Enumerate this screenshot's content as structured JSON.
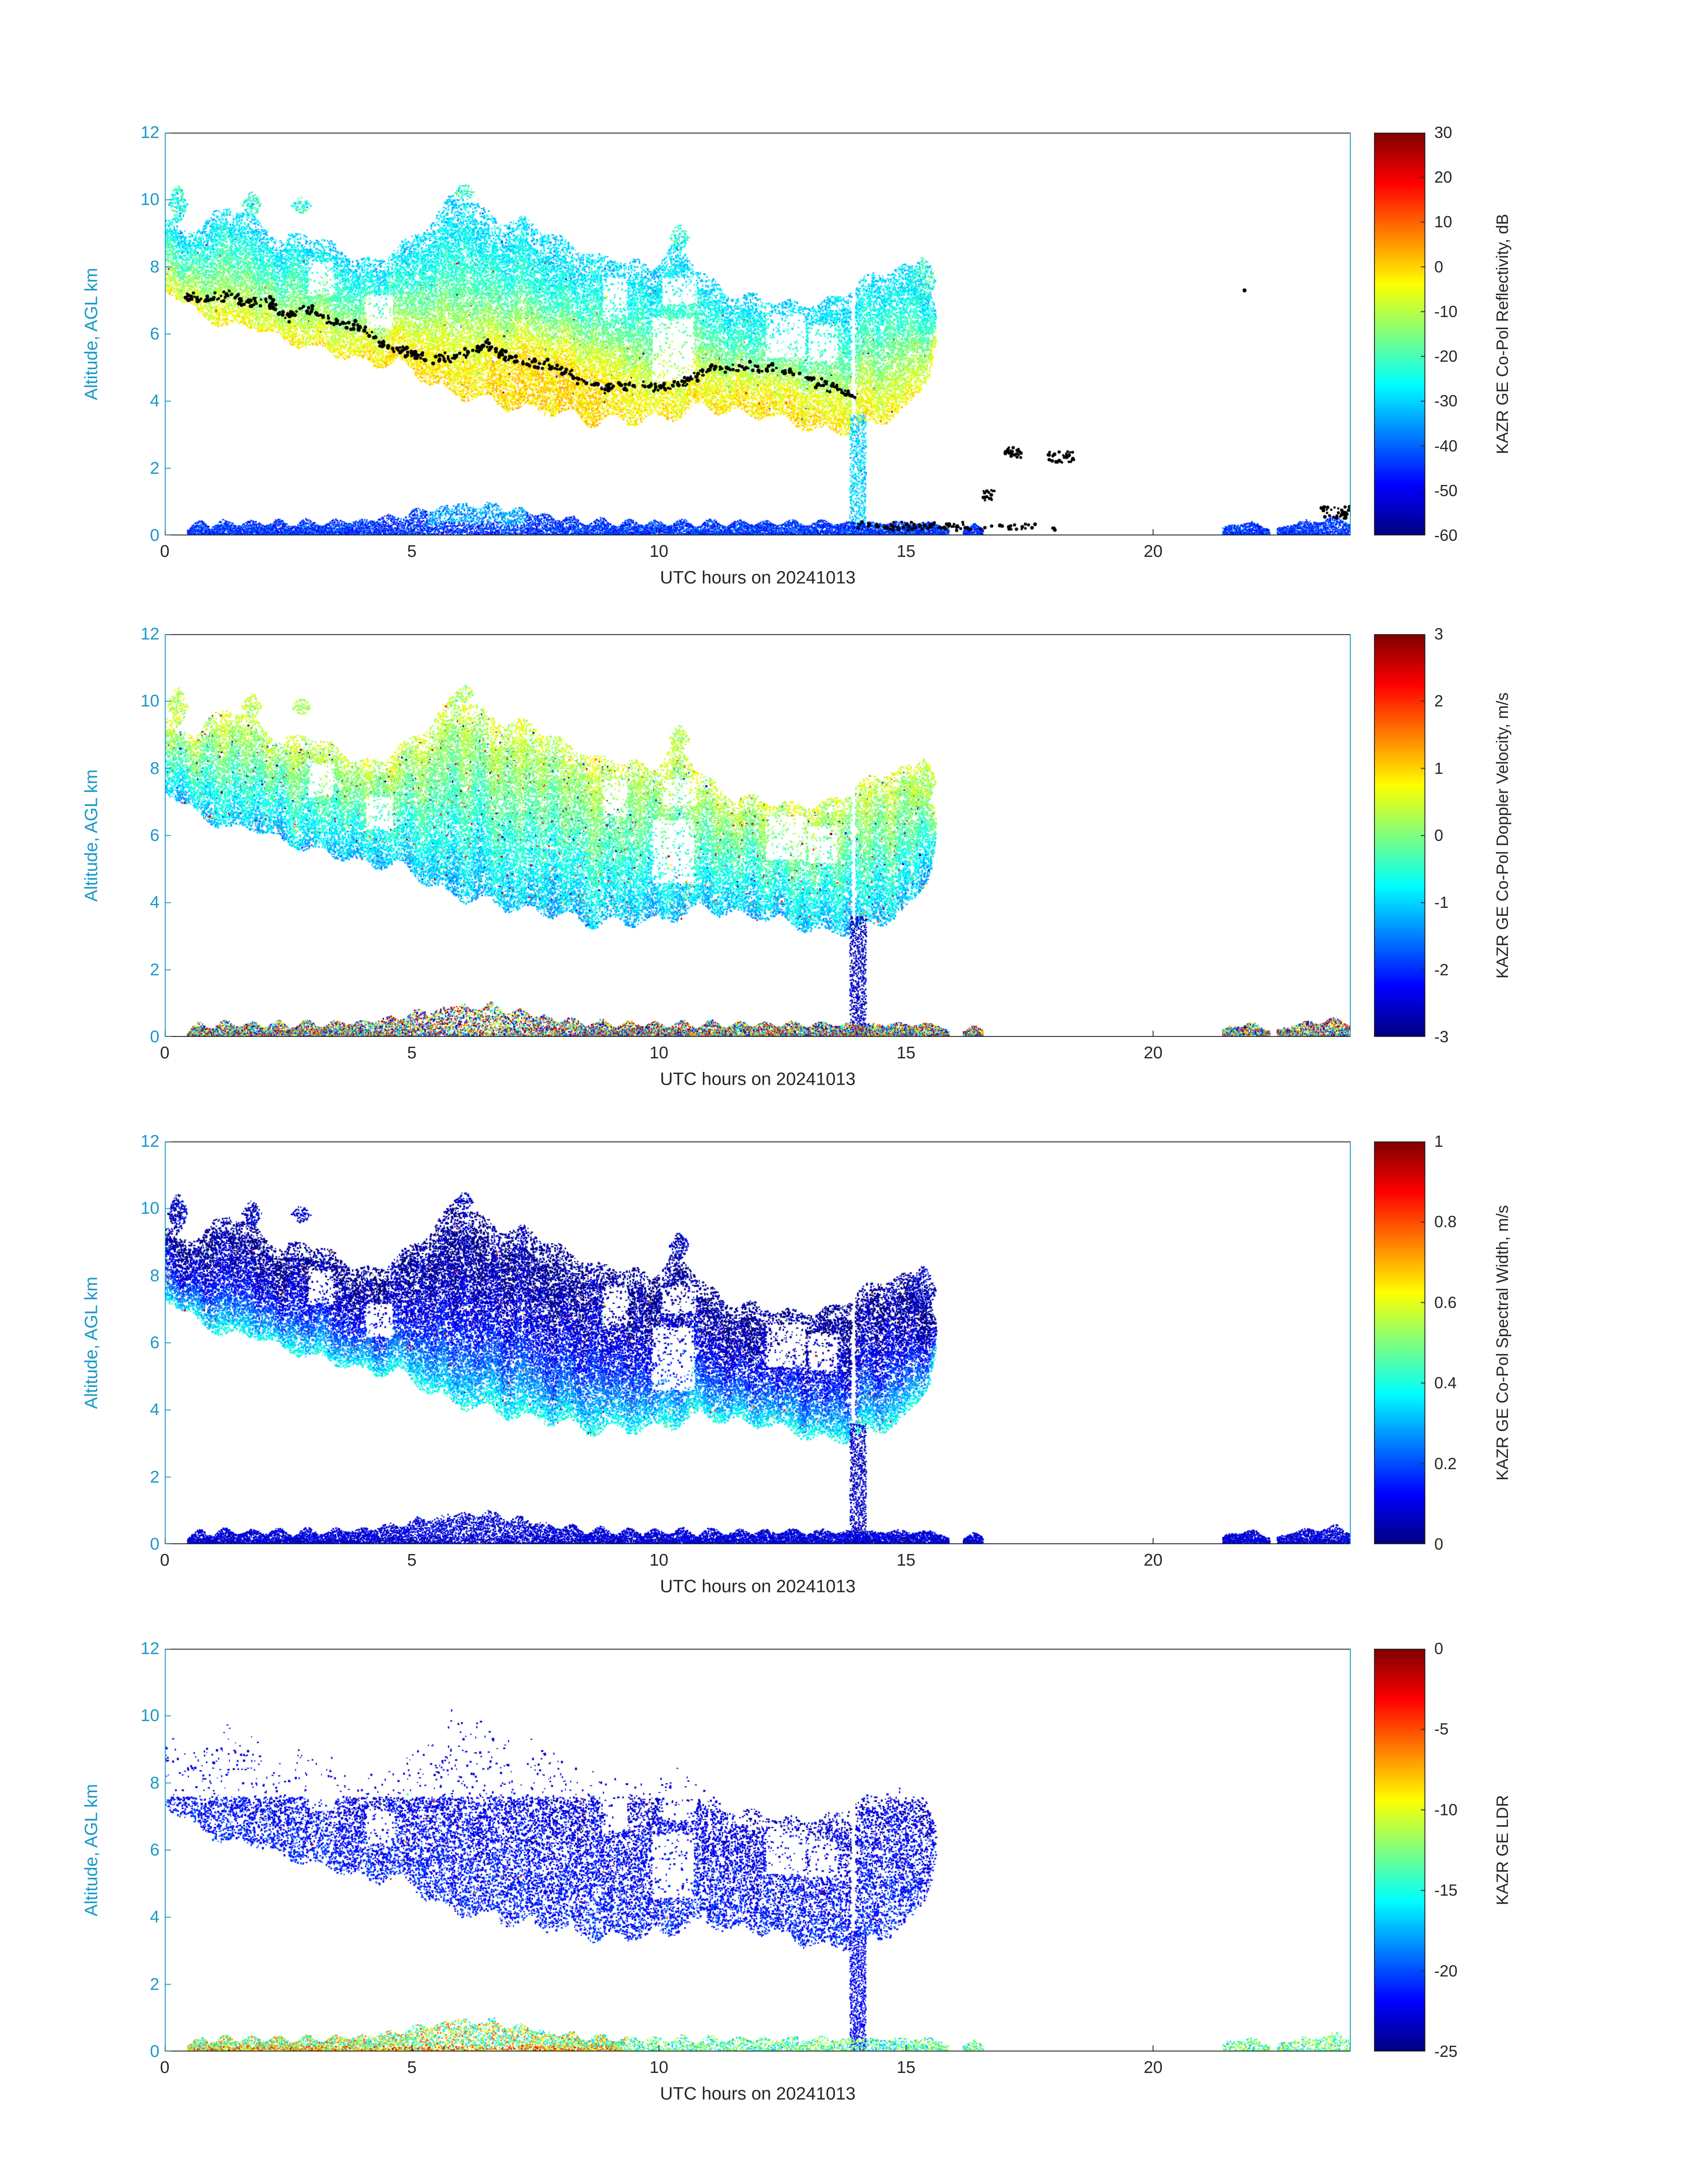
{
  "figure": {
    "background": "#ffffff",
    "y_axis_color": "#1a98c8",
    "x_axis_color": "#262626",
    "text_color": "#262626",
    "dot_color": "#000000"
  },
  "chart_data": [
    {
      "type": "heatmap",
      "field": "reflectivity",
      "title": "",
      "xlabel": "UTC hours on 20241013",
      "ylabel": "Altitude, AGL km",
      "xlim": [
        0,
        24
      ],
      "ylim": [
        0,
        12
      ],
      "xticks": [
        0,
        5,
        10,
        15,
        20
      ],
      "xtick_labels": [
        "0",
        "5",
        "10",
        "15",
        "20"
      ],
      "yticks": [
        0,
        2,
        4,
        6,
        8,
        10,
        12
      ],
      "ytick_labels": [
        "0",
        "2",
        "4",
        "6",
        "8",
        "10",
        "12"
      ],
      "colormap": "jet",
      "show_dots": true,
      "colorbar": {
        "label": "KAZR GE Co-Pol Reflectivity, dB",
        "min": -60,
        "max": 30,
        "ticks": [
          30,
          20,
          10,
          0,
          -10,
          -20,
          -30,
          -40,
          -50,
          -60
        ],
        "tick_labels": [
          "30",
          "20",
          "10",
          "0",
          "-10",
          "-20",
          "-30",
          "-40",
          "-50",
          "-60"
        ]
      }
    },
    {
      "type": "heatmap",
      "field": "velocity",
      "title": "",
      "xlabel": "UTC hours on 20241013",
      "ylabel": "Altitude, AGL km",
      "xlim": [
        0,
        24
      ],
      "ylim": [
        0,
        12
      ],
      "xticks": [
        0,
        5,
        10,
        15,
        20
      ],
      "xtick_labels": [
        "0",
        "5",
        "10",
        "15",
        "20"
      ],
      "yticks": [
        0,
        2,
        4,
        6,
        8,
        10,
        12
      ],
      "ytick_labels": [
        "0",
        "2",
        "4",
        "6",
        "8",
        "10",
        "12"
      ],
      "colormap": "jet",
      "show_dots": false,
      "colorbar": {
        "label": "KAZR GE Co-Pol Doppler Velocity, m/s",
        "min": -3,
        "max": 3,
        "ticks": [
          3,
          2,
          1,
          0,
          -1,
          -2,
          -3
        ],
        "tick_labels": [
          "3",
          "2",
          "1",
          "0",
          "-1",
          "-2",
          "-3"
        ]
      }
    },
    {
      "type": "heatmap",
      "field": "width",
      "title": "",
      "xlabel": "UTC hours on 20241013",
      "ylabel": "Altitude, AGL km",
      "xlim": [
        0,
        24
      ],
      "ylim": [
        0,
        12
      ],
      "xticks": [
        0,
        5,
        10,
        15,
        20
      ],
      "xtick_labels": [
        "0",
        "5",
        "10",
        "15",
        "20"
      ],
      "yticks": [
        0,
        2,
        4,
        6,
        8,
        10,
        12
      ],
      "ytick_labels": [
        "0",
        "2",
        "4",
        "6",
        "8",
        "10",
        "12"
      ],
      "colormap": "jet",
      "show_dots": false,
      "colorbar": {
        "label": "KAZR GE Co-Pol Spectral Width, m/s",
        "min": 0,
        "max": 1,
        "ticks": [
          1,
          0.8,
          0.6,
          0.4,
          0.2,
          0
        ],
        "tick_labels": [
          "1",
          "0.8",
          "0.6",
          "0.4",
          "0.2",
          "0"
        ]
      }
    },
    {
      "type": "heatmap",
      "field": "ldr",
      "title": "",
      "xlabel": "UTC hours on 20241013",
      "ylabel": "Altitude, AGL km",
      "xlim": [
        0,
        24
      ],
      "ylim": [
        0,
        12
      ],
      "xticks": [
        0,
        5,
        10,
        15,
        20
      ],
      "xtick_labels": [
        "0",
        "5",
        "10",
        "15",
        "20"
      ],
      "yticks": [
        0,
        2,
        4,
        6,
        8,
        10,
        12
      ],
      "ytick_labels": [
        "0",
        "2",
        "4",
        "6",
        "8",
        "10",
        "12"
      ],
      "colormap": "jet",
      "show_dots": false,
      "colorbar": {
        "label": "KAZR GE LDR",
        "min": -25,
        "max": 0,
        "ticks": [
          0,
          -5,
          -10,
          -15,
          -20,
          -25
        ],
        "tick_labels": [
          "0",
          "-5",
          "-10",
          "-15",
          "-20",
          "-25"
        ]
      }
    }
  ],
  "scene": {
    "envelope": [
      [
        0.0,
        7.3,
        9.8
      ],
      [
        0.3,
        7.0,
        9.2
      ],
      [
        0.8,
        6.6,
        9.4
      ],
      [
        1.3,
        6.3,
        9.7
      ],
      [
        1.8,
        6.1,
        9.2
      ],
      [
        2.3,
        5.9,
        8.7
      ],
      [
        2.8,
        5.7,
        9.1
      ],
      [
        3.3,
        5.5,
        8.8
      ],
      [
        3.8,
        5.3,
        8.5
      ],
      [
        4.3,
        5.1,
        8.4
      ],
      [
        4.8,
        5.0,
        8.7
      ],
      [
        5.3,
        4.7,
        9.2
      ],
      [
        5.8,
        4.3,
        9.9
      ],
      [
        6.3,
        4.0,
        9.6
      ],
      [
        6.8,
        3.9,
        9.3
      ],
      [
        7.3,
        3.8,
        9.6
      ],
      [
        7.8,
        3.7,
        9.3
      ],
      [
        8.3,
        3.6,
        8.9
      ],
      [
        8.8,
        3.4,
        8.4
      ],
      [
        9.3,
        3.3,
        7.9
      ],
      [
        9.8,
        3.5,
        7.7
      ],
      [
        10.3,
        3.7,
        8.5
      ],
      [
        10.8,
        3.8,
        7.9
      ],
      [
        11.3,
        3.7,
        7.5
      ],
      [
        11.8,
        3.6,
        7.4
      ],
      [
        12.3,
        3.5,
        7.2
      ],
      [
        12.8,
        3.4,
        7.0
      ],
      [
        13.3,
        3.2,
        6.9
      ],
      [
        13.8,
        3.0,
        7.0
      ],
      [
        14.2,
        3.3,
        7.4
      ],
      [
        14.7,
        3.6,
        7.9
      ],
      [
        15.1,
        4.0,
        8.0
      ],
      [
        15.45,
        4.8,
        7.6
      ],
      [
        15.6,
        5.8,
        6.8
      ]
    ],
    "holes": [
      [
        9.85,
        10.7,
        4.6,
        6.5
      ],
      [
        12.15,
        12.95,
        5.3,
        6.6
      ],
      [
        10.05,
        10.75,
        6.9,
        7.7
      ],
      [
        4.05,
        4.6,
        6.2,
        7.2
      ],
      [
        8.85,
        9.35,
        6.6,
        7.7
      ],
      [
        13.0,
        13.6,
        5.2,
        6.3
      ],
      [
        2.9,
        3.4,
        7.2,
        8.2
      ]
    ],
    "fragments": [
      [
        15.05,
        15.6,
        6.9,
        8.3
      ],
      [
        10.2,
        10.6,
        8.5,
        9.3
      ],
      [
        0.05,
        0.45,
        9.3,
        10.45
      ],
      [
        1.55,
        1.95,
        9.5,
        10.25
      ],
      [
        2.55,
        2.95,
        9.6,
        10.1
      ],
      [
        5.85,
        6.25,
        10.0,
        10.5
      ]
    ],
    "streak": [
      13.85,
      14.18,
      0.0,
      3.6
    ],
    "low_echo": {
      "segments": [
        [
          0.45,
          15.85
        ],
        [
          16.15,
          16.55
        ],
        [
          21.4,
          22.35
        ],
        [
          22.5,
          24.0
        ]
      ],
      "peak_t": 6.2,
      "peak_h": 1.15,
      "base_h": 0.55
    },
    "dots": {
      "track": [
        [
          0.4,
          7.1
        ],
        [
          0.9,
          7.0
        ],
        [
          1.3,
          7.2
        ],
        [
          1.7,
          6.9
        ],
        [
          2.1,
          7.0
        ],
        [
          2.5,
          6.5
        ],
        [
          2.9,
          6.8
        ],
        [
          3.3,
          6.4
        ],
        [
          3.7,
          6.3
        ],
        [
          4.1,
          6.1
        ],
        [
          4.5,
          5.6
        ],
        [
          4.9,
          5.5
        ],
        [
          5.3,
          5.2
        ],
        [
          5.7,
          5.3
        ],
        [
          6.1,
          5.4
        ],
        [
          6.5,
          5.7
        ],
        [
          6.9,
          5.3
        ],
        [
          7.3,
          5.15
        ],
        [
          7.7,
          5.1
        ],
        [
          8.1,
          4.9
        ],
        [
          8.5,
          4.5
        ],
        [
          8.9,
          4.4
        ],
        [
          9.3,
          4.4
        ],
        [
          9.7,
          4.5
        ],
        [
          10.1,
          4.4
        ],
        [
          10.5,
          4.6
        ],
        [
          10.9,
          4.9
        ],
        [
          11.3,
          5.0
        ],
        [
          11.7,
          5.0
        ],
        [
          12.1,
          5.0
        ],
        [
          12.5,
          4.9
        ],
        [
          12.9,
          4.7
        ],
        [
          13.3,
          4.5
        ],
        [
          13.7,
          4.3
        ],
        [
          13.95,
          4.15
        ]
      ],
      "track_n": 520,
      "clusters": [
        [
          16.55,
          16.8,
          1.0,
          1.35,
          18
        ],
        [
          17.0,
          17.35,
          2.3,
          2.62,
          26
        ],
        [
          17.85,
          18.4,
          2.15,
          2.5,
          30
        ],
        [
          14.0,
          16.2,
          0.15,
          0.4,
          70
        ],
        [
          16.2,
          18.1,
          0.15,
          0.35,
          28
        ],
        [
          23.4,
          23.98,
          0.5,
          0.85,
          40
        ]
      ],
      "singles": [
        [
          21.85,
          7.3
        ]
      ]
    },
    "fields": {
      "reflectivity": {
        "vtop": -30,
        "vbot": -3,
        "gamma": 1.25,
        "noise": 5,
        "colnoise": 3,
        "speckle": 0.008,
        "cores": [
          [
            7.9,
            1.2,
            0.72,
            0.17,
            11
          ],
          [
            12.3,
            1.3,
            0.78,
            0.15,
            6
          ],
          [
            4.9,
            0.9,
            0.78,
            0.18,
            5
          ]
        ],
        "low": {
          "base": -52,
          "range": 16,
          "boost_t": [
            5.3,
            7.3
          ],
          "boost": 9
        },
        "streak": {
          "v": -30,
          "noise": 7
        },
        "frag_v": -24
      },
      "velocity": {
        "vtop": 0.5,
        "vbot": -1.15,
        "gamma": 1.0,
        "noise": 0.28,
        "colnoise": 0.4,
        "speckle": 0.05,
        "low": {
          "base": -3,
          "range": 6
        },
        "streak": {
          "v": -2.6,
          "noise": 0.5
        },
        "frag_v": 0.3
      },
      "width": {
        "vtop": 0.03,
        "vbot": 0.4,
        "gamma": 2.3,
        "noise": 0.06,
        "colnoise": 0.05,
        "speckle": 0.02,
        "low": {
          "base": 0.02,
          "range": 0.14
        },
        "streak": {
          "v": 0.07,
          "noise": 0.05
        },
        "frag_v": 0.06
      },
      "ldr": {
        "vtop": -23,
        "vbot": -21,
        "gamma": 1,
        "noise": 1.3,
        "colnoise": 1,
        "speckle": 0.01,
        "sparse": 0.5,
        "zmax": 7.6,
        "no_frags": true,
        "low": {
          "base": -17,
          "range": 13
        },
        "streak": {
          "v": -22,
          "noise": 1
        },
        "frag_v": -22
      }
    }
  }
}
